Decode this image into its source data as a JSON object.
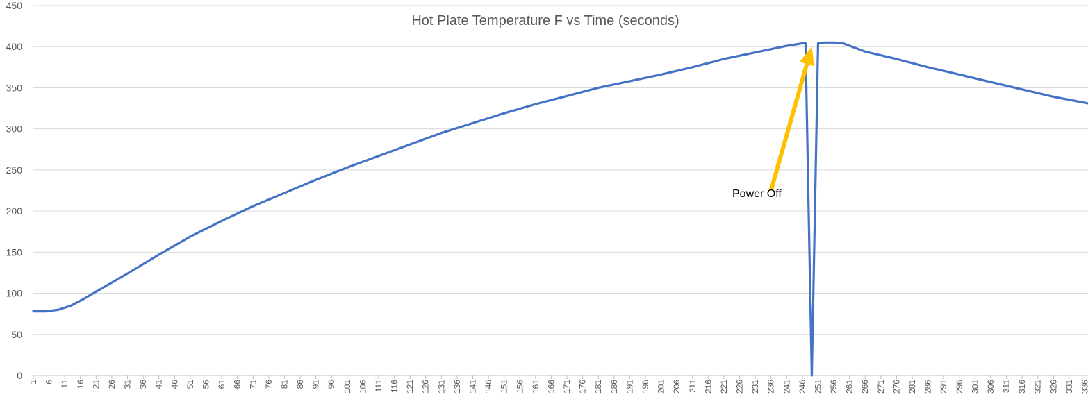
{
  "chart_data": {
    "type": "line",
    "title": "Hot Plate Temperature F vs Time (seconds)",
    "xlabel": "",
    "ylabel": "",
    "ylim": [
      0,
      450
    ],
    "yticks": [
      0,
      50,
      100,
      150,
      200,
      250,
      300,
      350,
      400,
      450
    ],
    "xlim": [
      1,
      337
    ],
    "xticks": [
      1,
      6,
      11,
      16,
      21,
      26,
      31,
      36,
      41,
      46,
      51,
      56,
      61,
      66,
      71,
      76,
      81,
      86,
      91,
      96,
      101,
      106,
      111,
      116,
      121,
      126,
      131,
      136,
      141,
      146,
      151,
      156,
      161,
      166,
      171,
      176,
      181,
      186,
      191,
      196,
      201,
      206,
      211,
      216,
      221,
      226,
      231,
      236,
      241,
      246,
      251,
      256,
      261,
      266,
      271,
      276,
      281,
      286,
      291,
      296,
      301,
      306,
      311,
      316,
      321,
      326,
      331,
      336
    ],
    "grid": true,
    "legend": "none",
    "series": [
      {
        "color": "#4472c4",
        "x": [
          1,
          5,
          9,
          13,
          17,
          21,
          31,
          41,
          51,
          61,
          71,
          81,
          91,
          101,
          111,
          121,
          131,
          141,
          151,
          161,
          171,
          181,
          191,
          201,
          211,
          221,
          231,
          241,
          246,
          247,
          248,
          249,
          250,
          251,
          253,
          256,
          259,
          266,
          276,
          286,
          296,
          306,
          316,
          326,
          337
        ],
        "y": [
          78,
          78,
          80,
          85,
          93,
          102,
          124,
          147,
          169,
          188,
          206,
          222,
          238,
          253,
          267,
          281,
          295,
          307,
          319,
          330,
          340,
          350,
          358,
          366,
          375,
          385,
          393,
          401,
          404,
          404,
          200,
          0,
          200,
          404,
          405,
          405,
          404,
          394,
          385,
          375,
          366,
          357,
          348,
          339,
          331
        ]
      }
    ],
    "annotations": [
      {
        "text": "Power Off",
        "arrow_from": [
          236,
          225
        ],
        "arrow_to": [
          249,
          400
        ],
        "color": "#ffc000"
      }
    ]
  }
}
